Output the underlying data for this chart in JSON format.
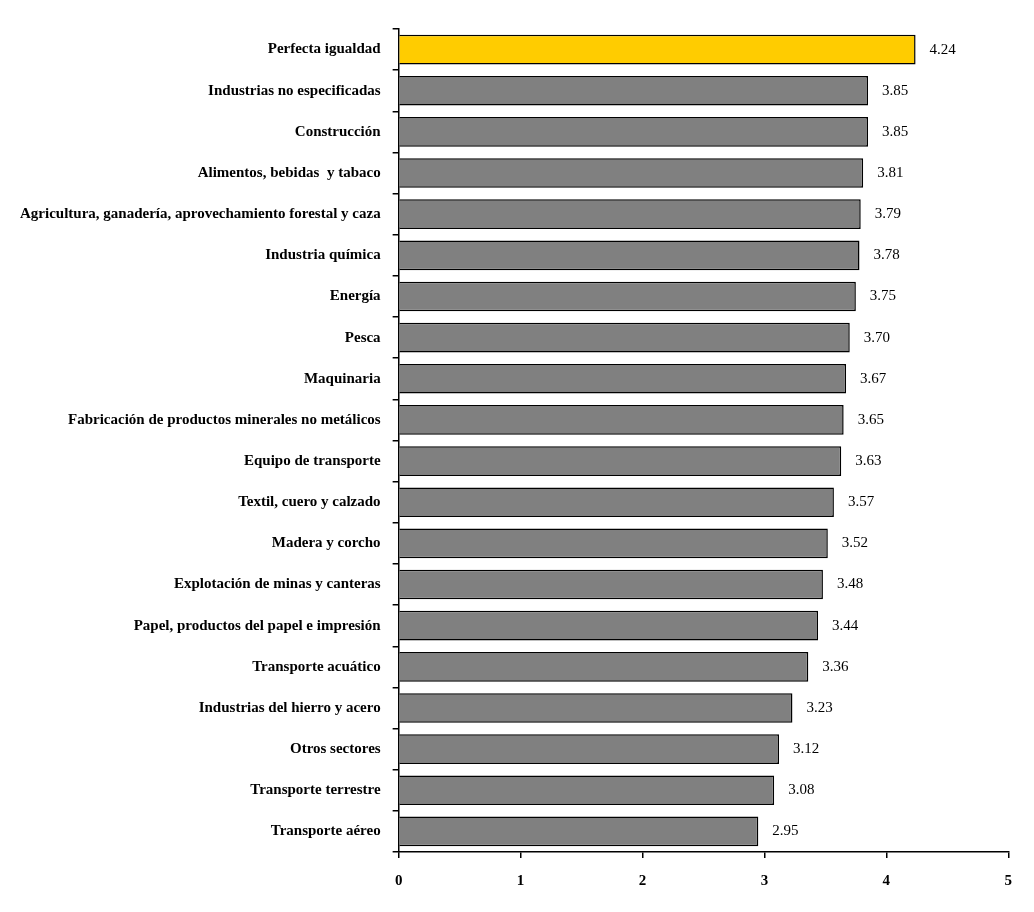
{
  "chart_data": {
    "type": "bar",
    "orientation": "horizontal",
    "categories": [
      "Perfecta igualdad",
      "Industrias no especificadas",
      "Construcción",
      "Alimentos, bebidas  y tabaco",
      "Agricultura, ganadería, aprovechamiento forestal y caza",
      "Industria química",
      "Energía",
      "Pesca",
      "Maquinaria",
      "Fabricación de productos minerales no metálicos",
      "Equipo de transporte",
      "Textil, cuero y calzado",
      "Madera y corcho",
      "Explotación de minas y canteras",
      "Papel, productos del papel e impresión",
      "Transporte acuático",
      "Industrias del hierro y acero",
      "Otros sectores",
      "Transporte terrestre",
      "Transporte aéreo"
    ],
    "values": [
      4.24,
      3.85,
      3.85,
      3.81,
      3.79,
      3.78,
      3.75,
      3.7,
      3.67,
      3.65,
      3.63,
      3.57,
      3.52,
      3.48,
      3.44,
      3.36,
      3.23,
      3.12,
      3.08,
      2.95
    ],
    "value_labels": [
      "4.24",
      "3.85",
      "3.85",
      "3.81",
      "3.79",
      "3.78",
      "3.75",
      "3.70",
      "3.67",
      "3.65",
      "3.63",
      "3.57",
      "3.52",
      "3.48",
      "3.44",
      "3.36",
      "3.23",
      "3.12",
      "3.08",
      "2.95"
    ],
    "colors": [
      "#ffcc00",
      "#808080",
      "#808080",
      "#808080",
      "#808080",
      "#808080",
      "#808080",
      "#808080",
      "#808080",
      "#808080",
      "#808080",
      "#808080",
      "#808080",
      "#808080",
      "#808080",
      "#808080",
      "#808080",
      "#808080",
      "#808080",
      "#808080"
    ],
    "xlim": [
      0,
      5
    ],
    "xticks": [
      0,
      1,
      2,
      3,
      4,
      5
    ],
    "grid": false,
    "legend": false
  }
}
